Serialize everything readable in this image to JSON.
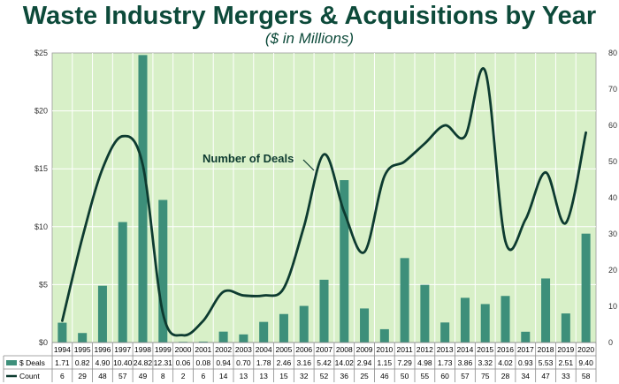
{
  "chart_data": {
    "type": "bar+line",
    "title": "Waste Industry Mergers & Acquisitions by Year",
    "subtitle": "($ in Millions)",
    "categories": [
      "1994",
      "1995",
      "1996",
      "1997",
      "1998",
      "1999",
      "2000",
      "2001",
      "2002",
      "2003",
      "2004",
      "2005",
      "2006",
      "2007",
      "2008",
      "2009",
      "2010",
      "2011",
      "2012",
      "2013",
      "2014",
      "2015",
      "2016",
      "2017",
      "2018",
      "2019",
      "2020"
    ],
    "series": [
      {
        "name": "$ Deals",
        "type": "bar",
        "axis": "left",
        "color": "#3d8f7a",
        "values": [
          1.71,
          0.82,
          4.9,
          10.4,
          24.82,
          12.31,
          0.06,
          0.08,
          0.94,
          0.7,
          1.78,
          2.46,
          3.16,
          5.42,
          14.02,
          2.94,
          1.15,
          7.29,
          4.98,
          1.73,
          3.86,
          3.32,
          4.02,
          0.93,
          5.53,
          2.51,
          9.4
        ],
        "labels": [
          "1.71",
          "0.82",
          "4.90",
          "10.40",
          "24.82",
          "12.31",
          "0.06",
          "0.08",
          "0.94",
          "0.70",
          "1.78",
          "2.46",
          "3.16",
          "5.42",
          "14.02",
          "2.94",
          "1.15",
          "7.29",
          "4.98",
          "1.73",
          "3.86",
          "3.32",
          "4.02",
          "0.93",
          "5.53",
          "2.51",
          "9.40"
        ]
      },
      {
        "name": "Count",
        "type": "line",
        "axis": "right",
        "color": "#0d3b30",
        "values": [
          6,
          29,
          48,
          57,
          49,
          8,
          2,
          6,
          14,
          13,
          13,
          15,
          32,
          52,
          36,
          25,
          46,
          50,
          55,
          60,
          57,
          75,
          28,
          34,
          47,
          33,
          58
        ]
      }
    ],
    "y_left": {
      "min": 0,
      "max": 25,
      "step": 5,
      "ticks": [
        "$0",
        "$5",
        "$10",
        "$15",
        "$20",
        "$25"
      ]
    },
    "y_right": {
      "min": 0,
      "max": 80,
      "step": 10,
      "ticks": [
        "0",
        "10",
        "20",
        "30",
        "40",
        "50",
        "60",
        "70",
        "80"
      ]
    },
    "annotation": "Number of Deals",
    "grid": true,
    "background": "#d8f0c8",
    "gridline_color": "#ffffff",
    "title_color": "#0d4a3a"
  }
}
